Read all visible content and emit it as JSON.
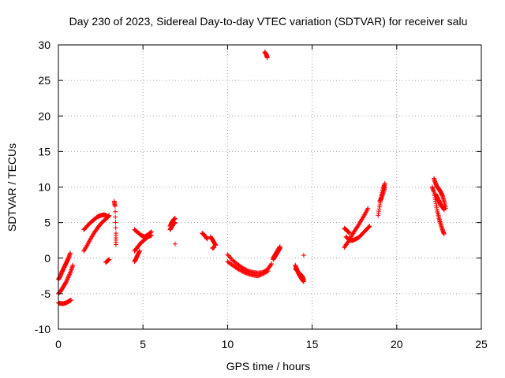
{
  "chart_data": {
    "type": "scatter",
    "title": "Day 230 of 2023, Sidereal Day-to-day VTEC variation (SDTVAR) for receiver salu",
    "xlabel": "GPS time / hours",
    "ylabel": "SDTVAR / TECUs",
    "xlim": [
      0,
      25
    ],
    "ylim": [
      -10,
      30
    ],
    "xticks": [
      0,
      5,
      10,
      15,
      20,
      25
    ],
    "yticks": [
      -10,
      -5,
      0,
      5,
      10,
      15,
      20,
      25,
      30
    ],
    "grid": true,
    "marker": "+",
    "color": "#ff0000",
    "series": [
      {
        "name": "SDTVAR",
        "segments": [
          {
            "x": [
              0.0,
              0.1,
              0.2,
              0.3,
              0.4,
              0.5,
              0.6,
              0.7
            ],
            "y": [
              -3.0,
              -2.6,
              -2.0,
              -1.5,
              -1.0,
              -0.5,
              0.0,
              0.7
            ]
          },
          {
            "x": [
              0.0,
              0.15,
              0.3,
              0.45,
              0.6,
              0.75,
              0.85
            ],
            "y": [
              -5.0,
              -4.6,
              -4.0,
              -3.4,
              -2.6,
              -1.8,
              -1.0
            ]
          },
          {
            "x": [
              0.0,
              0.15,
              0.3,
              0.45,
              0.6,
              0.75
            ],
            "y": [
              -6.3,
              -6.4,
              -6.4,
              -6.3,
              -6.1,
              -5.9
            ]
          },
          {
            "x": [
              1.5,
              1.7,
              1.9,
              2.1,
              2.3,
              2.5,
              2.7,
              2.9
            ],
            "y": [
              4.0,
              4.5,
              5.0,
              5.4,
              5.8,
              6.0,
              6.1,
              5.9
            ]
          },
          {
            "x": [
              1.5,
              1.7,
              1.9,
              2.1,
              2.3,
              2.5,
              2.7,
              2.9,
              3.0
            ],
            "y": [
              1.0,
              1.8,
              2.7,
              3.5,
              4.2,
              4.8,
              5.3,
              5.7,
              6.0
            ]
          },
          {
            "x": [
              2.8,
              2.9,
              3.0
            ],
            "y": [
              -0.6,
              -0.4,
              -0.2
            ]
          },
          {
            "x": [
              3.3,
              3.35,
              3.4,
              3.4
            ],
            "y": [
              8.0,
              7.3,
              3.5,
              1.9
            ]
          },
          {
            "x": [
              4.5,
              4.7,
              4.9,
              5.1,
              5.3,
              5.5
            ],
            "y": [
              4.0,
              3.6,
              3.2,
              3.0,
              3.3,
              3.7
            ]
          },
          {
            "x": [
              4.5,
              4.7,
              4.9,
              5.1,
              5.3,
              5.5
            ],
            "y": [
              1.0,
              1.6,
              2.2,
              2.6,
              3.0,
              3.2
            ]
          },
          {
            "x": [
              4.5,
              4.6,
              4.7,
              4.8
            ],
            "y": [
              -0.5,
              0.0,
              0.5,
              1.0
            ]
          },
          {
            "x": [
              6.6,
              6.7,
              6.8,
              6.9
            ],
            "y": [
              4.5,
              5.0,
              5.4,
              5.6
            ]
          },
          {
            "x": [
              6.6,
              6.7,
              6.8,
              6.9
            ],
            "y": [
              4.0,
              4.4,
              4.8,
              5.0
            ]
          },
          {
            "x": [
              6.9
            ],
            "y": [
              2.0
            ]
          },
          {
            "x": [
              8.5,
              8.6,
              8.7,
              8.8
            ],
            "y": [
              3.5,
              3.3,
              3.0,
              2.7
            ]
          },
          {
            "x": [
              9.0,
              9.1,
              9.2,
              9.3
            ],
            "y": [
              3.0,
              2.6,
              2.2,
              1.8
            ]
          },
          {
            "x": [
              9.1,
              9.2
            ],
            "y": [
              1.4,
              1.5
            ]
          },
          {
            "x": [
              10.0,
              10.3,
              10.6,
              10.9,
              11.2,
              11.5,
              11.8,
              12.1,
              12.4,
              12.6
            ],
            "y": [
              0.5,
              -0.3,
              -0.9,
              -1.4,
              -1.8,
              -2.0,
              -2.1,
              -2.0,
              -1.5,
              -0.8
            ]
          },
          {
            "x": [
              10.0,
              10.3,
              10.6,
              10.9,
              11.2,
              11.5,
              11.8,
              12.1,
              12.4
            ],
            "y": [
              -0.5,
              -1.0,
              -1.5,
              -1.9,
              -2.2,
              -2.4,
              -2.5,
              -2.2,
              -1.8
            ]
          },
          {
            "x": [
              12.2,
              12.3,
              12.35
            ],
            "y": [
              29.0,
              28.6,
              28.2
            ]
          },
          {
            "x": [
              12.7,
              12.8,
              12.9,
              13.0,
              13.1
            ],
            "y": [
              0.0,
              0.4,
              0.8,
              1.2,
              1.6
            ]
          },
          {
            "x": [
              12.7,
              12.8,
              12.9,
              13.0,
              13.1
            ],
            "y": [
              -0.2,
              0.2,
              0.6,
              1.0,
              1.4
            ]
          },
          {
            "x": [
              14.0,
              14.2,
              14.4,
              14.5
            ],
            "y": [
              -1.5,
              -2.0,
              -2.5,
              -3.0
            ]
          },
          {
            "x": [
              14.0,
              14.1,
              14.2,
              14.3,
              14.4,
              14.5
            ],
            "y": [
              -1.0,
              -1.6,
              -2.2,
              -2.6,
              -3.0,
              -3.3
            ]
          },
          {
            "x": [
              14.5
            ],
            "y": [
              0.4
            ]
          },
          {
            "x": [
              16.9,
              17.1,
              17.3,
              17.5,
              17.7,
              17.9,
              18.1,
              18.3
            ],
            "y": [
              1.5,
              2.2,
              3.0,
              3.8,
              4.5,
              5.3,
              6.1,
              7.0
            ]
          },
          {
            "x": [
              17.0,
              17.2,
              17.4,
              17.6,
              17.8,
              18.0,
              18.2,
              18.4
            ],
            "y": [
              3.0,
              2.5,
              2.5,
              2.7,
              3.0,
              3.5,
              4.0,
              4.5
            ]
          },
          {
            "x": [
              16.9,
              17.0,
              17.1,
              17.2
            ],
            "y": [
              4.2,
              4.0,
              3.8,
              3.5
            ]
          },
          {
            "x": [
              18.9,
              19.0,
              19.1,
              19.2,
              19.3
            ],
            "y": [
              6.0,
              7.5,
              8.8,
              9.8,
              10.5
            ]
          },
          {
            "x": [
              19.0,
              19.1,
              19.2,
              19.3
            ],
            "y": [
              8.0,
              8.5,
              9.2,
              10.0
            ]
          },
          {
            "x": [
              22.1,
              22.2,
              22.3,
              22.4,
              22.5,
              22.6,
              22.7,
              22.8
            ],
            "y": [
              10.0,
              9.3,
              8.0,
              6.6,
              5.6,
              4.8,
              4.0,
              3.4
            ]
          },
          {
            "x": [
              22.2,
              22.3,
              22.4,
              22.5,
              22.6,
              22.7,
              22.8,
              22.9
            ],
            "y": [
              11.2,
              10.5,
              10.0,
              9.7,
              9.3,
              8.8,
              8.0,
              7.0
            ]
          },
          {
            "x": [
              22.3,
              22.4,
              22.5,
              22.6,
              22.7,
              22.8
            ],
            "y": [
              9.0,
              8.5,
              8.0,
              7.5,
              7.2,
              6.8
            ]
          }
        ]
      }
    ]
  }
}
